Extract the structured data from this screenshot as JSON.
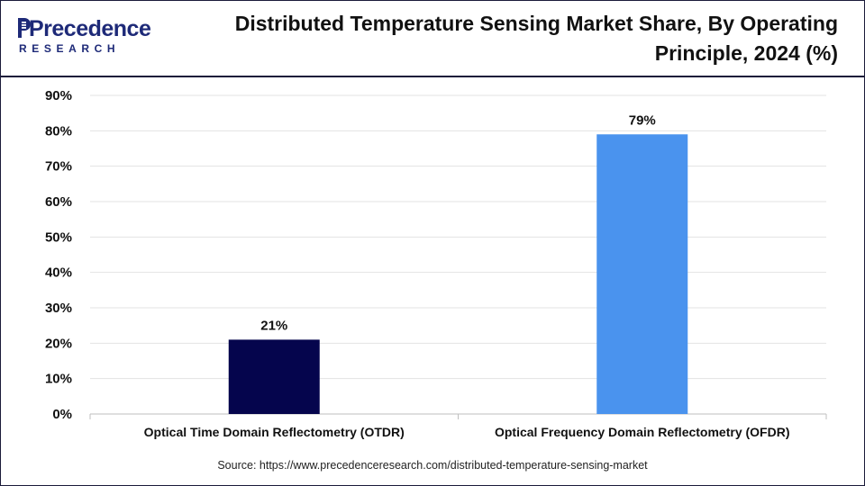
{
  "brand": {
    "name": "Precedence",
    "sub": "RESEARCH",
    "color": "#1e2a78"
  },
  "title": "Distributed Temperature Sensing Market Share, By Operating Principle, 2024 (%)",
  "source": "Source: https://www.precedenceresearch.com/distributed-temperature-sensing-market",
  "chart_data": {
    "type": "bar",
    "categories": [
      "Optical Time Domain Reflectometry (OTDR)",
      "Optical Frequency Domain Reflectometry (OFDR)"
    ],
    "values": [
      21,
      79
    ],
    "value_labels": [
      "21%",
      "79%"
    ],
    "colors": [
      "#05054d",
      "#4a93ee"
    ],
    "ylim": [
      0,
      90
    ],
    "yticks": [
      0,
      10,
      20,
      30,
      40,
      50,
      60,
      70,
      80,
      90
    ],
    "ytick_labels": [
      "0%",
      "10%",
      "20%",
      "30%",
      "40%",
      "50%",
      "60%",
      "70%",
      "80%",
      "90%"
    ],
    "grid": true,
    "xlabel": "",
    "ylabel": ""
  }
}
